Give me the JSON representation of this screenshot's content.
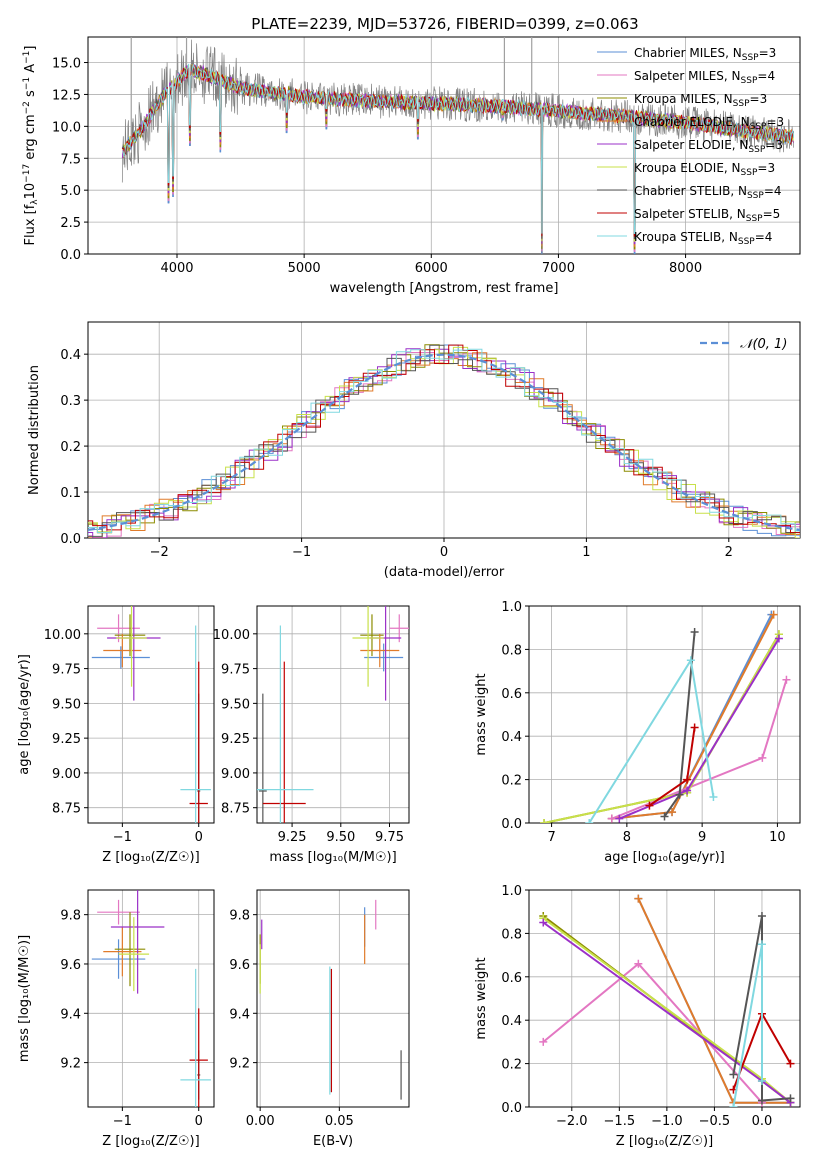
{
  "figure": {
    "title": "PLATE=2239, MJD=53726, FIBERID=0399, z=0.063"
  },
  "series": [
    {
      "name": "Chabrier MILES, N_SSP=3",
      "label_main": "Chabrier MILES, N",
      "label_sub": "SSP",
      "label_tail": "=3",
      "color": "#5b8fd6"
    },
    {
      "name": "Salpeter MILES, N_SSP=4",
      "label_main": "Salpeter MILES, N",
      "label_sub": "SSP",
      "label_tail": "=4",
      "color": "#e377c2"
    },
    {
      "name": "Kroupa MILES, N_SSP=3",
      "label_main": "Kroupa MILES, N",
      "label_sub": "SSP",
      "label_tail": "=3",
      "color": "#8c8c00"
    },
    {
      "name": "Chabrier ELODIE, N_SSP=3",
      "label_main": "Chabrier ELODIE, N",
      "label_sub": "SSP",
      "label_tail": "=3",
      "color": "#e07b2b"
    },
    {
      "name": "Salpeter ELODIE, N_SSP=3",
      "label_main": "Salpeter ELODIE, N",
      "label_sub": "SSP",
      "label_tail": "=3",
      "color": "#9b30c8"
    },
    {
      "name": "Kroupa ELODIE, N_SSP=3",
      "label_main": "Kroupa ELODIE, N",
      "label_sub": "SSP",
      "label_tail": "=3",
      "color": "#c8e04a"
    },
    {
      "name": "Chabrier STELIB, N_SSP=4",
      "label_main": "Chabrier STELIB, N",
      "label_sub": "SSP",
      "label_tail": "=4",
      "color": "#555555"
    },
    {
      "name": "Salpeter STELIB, N_SSP=5",
      "label_main": "Salpeter STELIB, N",
      "label_sub": "SSP",
      "label_tail": "=5",
      "color": "#c00000"
    },
    {
      "name": "Kroupa STELIB, N_SSP=4",
      "label_main": "Kroupa STELIB, N",
      "label_sub": "SSP",
      "label_tail": "=4",
      "color": "#80d8e0"
    }
  ],
  "chart_data": [
    {
      "id": "spectrum",
      "type": "line",
      "title": "PLATE=2239, MJD=53726, FIBERID=0399, z=0.063",
      "xlabel": "wavelength [Angstrom, rest frame]",
      "ylabel_parts": [
        "Flux [f",
        "λ",
        "10",
        "−17",
        " erg cm",
        "−2",
        " s",
        "−1",
        " A",
        "−1",
        "]"
      ],
      "xlim": [
        3300,
        8900
      ],
      "ylim": [
        0,
        17
      ],
      "xticks": [
        4000,
        5000,
        6000,
        7000,
        8000
      ],
      "yticks": [
        0.0,
        2.5,
        5.0,
        7.5,
        10.0,
        12.5,
        15.0
      ],
      "ytick_labels": [
        "0.0",
        "2.5",
        "5.0",
        "7.5",
        "10.0",
        "12.5",
        "15.0"
      ],
      "continuum": {
        "x": [
          3570,
          3700,
          3800,
          3900,
          4000,
          4100,
          4300,
          4500,
          4800,
          5000,
          5500,
          6000,
          6500,
          7000,
          7500,
          8000,
          8500,
          8800
        ],
        "y": [
          8.0,
          9.5,
          11.0,
          12.5,
          13.5,
          14.5,
          13.8,
          13.0,
          12.6,
          12.3,
          12.0,
          11.8,
          11.6,
          11.2,
          10.8,
          10.3,
          9.6,
          9.2
        ]
      },
      "absorption_dips": [
        [
          3934,
          4.0
        ],
        [
          3968,
          4.5
        ],
        [
          4102,
          8.5
        ],
        [
          4340,
          8.0
        ],
        [
          4861,
          9.5
        ],
        [
          5175,
          9.8
        ],
        [
          5893,
          9.0
        ],
        [
          6563,
          10.5
        ],
        [
          6870,
          0.0
        ],
        [
          7600,
          0.0
        ]
      ],
      "observed_noise_amplitude": 1.5,
      "grey_spike_x": [
        3640,
        4075,
        6575,
        6790
      ],
      "grey_spike_top": 17
    },
    {
      "id": "residuals",
      "type": "step",
      "xlabel": "(data-model)/error",
      "ylabel": "Normed distribution",
      "xlim": [
        -2.5,
        2.5
      ],
      "ylim": [
        0,
        0.47
      ],
      "xticks": [
        -2,
        -1,
        0,
        1,
        2
      ],
      "xtick_labels": [
        "−2",
        "−1",
        "0",
        "1",
        "2"
      ],
      "yticks": [
        0.0,
        0.1,
        0.2,
        0.3,
        0.4
      ],
      "ytick_labels": [
        "0.0",
        "0.1",
        "0.2",
        "0.3",
        "0.4"
      ],
      "normal_curve_label": "𝒩(0, 1)",
      "normal_curve_color": "#5b8fd6",
      "bin_width": 0.1
    },
    {
      "id": "age_vs_Z",
      "type": "errorbar",
      "xlabel": "Z [log₁₀(Z/Z☉)]",
      "ylabel": "age  [log₁₀(age/yr)]",
      "xlim": [
        -1.45,
        0.2
      ],
      "ylim": [
        8.64,
        10.2
      ],
      "xticks": [
        -1,
        0
      ],
      "xtick_labels": [
        "−1",
        "0"
      ],
      "yticks": [
        8.75,
        9.0,
        9.25,
        9.5,
        9.75,
        10.0
      ],
      "ytick_labels": [
        "8.75",
        "9.00",
        "9.25",
        "9.50",
        "9.75",
        "10.00"
      ],
      "points": [
        {
          "s": 0,
          "x": -1.02,
          "y": 9.83,
          "xerr": 0.38,
          "yerr": 0.08
        },
        {
          "s": 1,
          "x": -1.05,
          "y": 10.04,
          "xerr": 0.28,
          "yerr": 0.1
        },
        {
          "s": 2,
          "x": -0.9,
          "y": 9.99,
          "xerr": 0.2,
          "yerr": 0.15
        },
        {
          "s": 3,
          "x": -1.0,
          "y": 9.88,
          "xerr": 0.25,
          "yerr": 0.12
        },
        {
          "s": 4,
          "x": -0.85,
          "y": 9.97,
          "xerr": 0.35,
          "yerr": 0.45
        },
        {
          "s": 5,
          "x": -0.88,
          "y": 9.97,
          "xerr": 0.2,
          "yerr": 0.35
        },
        {
          "s": 6,
          "x": 0.0,
          "y": 8.87,
          "xerr": 0.02,
          "yerr": 0.7
        },
        {
          "s": 7,
          "x": 0.0,
          "y": 8.78,
          "xerr": 0.12,
          "yerr": 1.02
        },
        {
          "s": 8,
          "x": -0.04,
          "y": 8.88,
          "xerr": 0.2,
          "yerr": 1.18
        }
      ]
    },
    {
      "id": "age_vs_mass",
      "type": "errorbar",
      "xlabel": "mass [log₁₀(M/M☉)]",
      "ylabel": "",
      "xlim": [
        9.07,
        9.85
      ],
      "ylim": [
        8.64,
        10.2
      ],
      "xticks": [
        9.25,
        9.5,
        9.75
      ],
      "xtick_labels": [
        "9.25",
        "9.50",
        "9.75"
      ],
      "yticks": [
        8.75,
        9.0,
        9.25,
        9.5,
        9.75,
        10.0
      ],
      "ytick_labels": [
        "8.75",
        "9.00",
        "9.25",
        "9.50",
        "9.75",
        "10.00"
      ],
      "points": [
        {
          "s": 0,
          "x": 9.72,
          "y": 9.83,
          "xerr": 0.1,
          "yerr": 0.1
        },
        {
          "s": 1,
          "x": 9.8,
          "y": 10.04,
          "xerr": 0.05,
          "yerr": 0.1
        },
        {
          "s": 2,
          "x": 9.66,
          "y": 9.99,
          "xerr": 0.06,
          "yerr": 0.15
        },
        {
          "s": 3,
          "x": 9.7,
          "y": 9.88,
          "xerr": 0.1,
          "yerr": 0.12
        },
        {
          "s": 4,
          "x": 9.73,
          "y": 9.97,
          "xerr": 0.08,
          "yerr": 0.45
        },
        {
          "s": 5,
          "x": 9.64,
          "y": 9.97,
          "xerr": 0.08,
          "yerr": 0.35
        },
        {
          "s": 6,
          "x": 9.1,
          "y": 8.87,
          "xerr": 0.02,
          "yerr": 0.7
        },
        {
          "s": 7,
          "x": 9.21,
          "y": 8.78,
          "xerr": 0.11,
          "yerr": 1.02
        },
        {
          "s": 8,
          "x": 9.19,
          "y": 8.88,
          "xerr": 0.17,
          "yerr": 1.18
        }
      ]
    },
    {
      "id": "weight_vs_age",
      "type": "line",
      "xlabel": "age  [log₁₀(age/yr)]",
      "ylabel": "mass weight",
      "xlim": [
        6.7,
        10.3
      ],
      "ylim": [
        0,
        1
      ],
      "xticks": [
        7,
        8,
        9,
        10
      ],
      "xtick_labels": [
        "7",
        "8",
        "9",
        "10"
      ],
      "yticks": [
        0.0,
        0.2,
        0.4,
        0.6,
        0.8,
        1.0
      ],
      "ytick_labels": [
        "0.0",
        "0.2",
        "0.4",
        "0.6",
        "0.8",
        "1.0"
      ],
      "lines": [
        {
          "s": 0,
          "x": [
            7.8,
            8.6,
            9.92
          ],
          "y": [
            0.02,
            0.05,
            0.96
          ]
        },
        {
          "s": 3,
          "x": [
            7.8,
            8.6,
            9.95
          ],
          "y": [
            0.02,
            0.05,
            0.96
          ]
        },
        {
          "s": 1,
          "x": [
            7.8,
            9.8,
            10.12
          ],
          "y": [
            0.02,
            0.3,
            0.66
          ]
        },
        {
          "s": 2,
          "x": [
            6.9,
            8.8,
            10.02
          ],
          "y": [
            0.0,
            0.14,
            0.87
          ]
        },
        {
          "s": 5,
          "x": [
            6.9,
            8.8,
            10.02
          ],
          "y": [
            0.0,
            0.14,
            0.87
          ]
        },
        {
          "s": 4,
          "x": [
            7.9,
            8.8,
            10.02
          ],
          "y": [
            0.02,
            0.15,
            0.85
          ]
        },
        {
          "s": 6,
          "x": [
            8.5,
            8.7,
            8.9
          ],
          "y": [
            0.03,
            0.13,
            0.88
          ]
        },
        {
          "s": 7,
          "x": [
            8.3,
            8.8,
            8.9
          ],
          "y": [
            0.08,
            0.2,
            0.44
          ]
        },
        {
          "s": 8,
          "x": [
            7.5,
            8.85,
            9.15
          ],
          "y": [
            0.0,
            0.75,
            0.12
          ]
        }
      ]
    },
    {
      "id": "mass_vs_Z",
      "type": "errorbar",
      "xlabel": "Z [log₁₀(Z/Z☉)]",
      "ylabel": "mass [log₁₀(M/M☉)]",
      "xlim": [
        -1.45,
        0.2
      ],
      "ylim": [
        9.02,
        9.9
      ],
      "xticks": [
        -1,
        0
      ],
      "xtick_labels": [
        "−1",
        "0"
      ],
      "yticks": [
        9.2,
        9.4,
        9.6,
        9.8
      ],
      "ytick_labels": [
        "9.2",
        "9.4",
        "9.6",
        "9.8"
      ],
      "points": [
        {
          "s": 0,
          "x": -1.05,
          "y": 9.62,
          "xerr": 0.35,
          "yerr": 0.08
        },
        {
          "s": 1,
          "x": -1.05,
          "y": 9.81,
          "xerr": 0.28,
          "yerr": 0.05
        },
        {
          "s": 2,
          "x": -0.9,
          "y": 9.66,
          "xerr": 0.2,
          "yerr": 0.15
        },
        {
          "s": 3,
          "x": -1.0,
          "y": 9.65,
          "xerr": 0.25,
          "yerr": 0.1
        },
        {
          "s": 4,
          "x": -0.8,
          "y": 9.75,
          "xerr": 0.35,
          "yerr": 0.27
        },
        {
          "s": 5,
          "x": -0.85,
          "y": 9.64,
          "xerr": 0.2,
          "yerr": 0.15
        },
        {
          "s": 6,
          "x": 0.0,
          "y": 9.15,
          "xerr": 0.02,
          "yerr": 0.1
        },
        {
          "s": 7,
          "x": 0.0,
          "y": 9.21,
          "xerr": 0.12,
          "yerr": 0.21
        },
        {
          "s": 8,
          "x": -0.04,
          "y": 9.13,
          "xerr": 0.2,
          "yerr": 0.45
        }
      ]
    },
    {
      "id": "mass_vs_EBV",
      "type": "errorbar",
      "xlabel": "E(B-V)",
      "ylabel": "",
      "xlim": [
        -0.002,
        0.094
      ],
      "ylim": [
        9.02,
        9.9
      ],
      "xticks": [
        0.0,
        0.05
      ],
      "xtick_labels": [
        "0.00",
        "0.05"
      ],
      "yticks": [
        9.2,
        9.4,
        9.6,
        9.8
      ],
      "ytick_labels": [
        "9.2",
        "9.4",
        "9.6",
        "9.8"
      ],
      "points": [
        {
          "s": 0,
          "x": 0.066,
          "y": 9.75,
          "xerr": 0.0,
          "yerr": 0.08
        },
        {
          "s": 1,
          "x": 0.073,
          "y": 9.8,
          "xerr": 0.0,
          "yerr": 0.06
        },
        {
          "s": 2,
          "x": 0.0,
          "y": 9.62,
          "xerr": 0.0,
          "yerr": 0.1
        },
        {
          "s": 3,
          "x": 0.066,
          "y": 9.7,
          "xerr": 0.0,
          "yerr": 0.1
        },
        {
          "s": 4,
          "x": 0.001,
          "y": 9.72,
          "xerr": 0.0,
          "yerr": 0.06
        },
        {
          "s": 5,
          "x": 0.0,
          "y": 9.58,
          "xerr": 0.0,
          "yerr": 0.1
        },
        {
          "s": 6,
          "x": 0.089,
          "y": 9.15,
          "xerr": 0.0,
          "yerr": 0.1
        },
        {
          "s": 7,
          "x": 0.045,
          "y": 9.33,
          "xerr": 0.0,
          "yerr": 0.25
        },
        {
          "s": 8,
          "x": 0.044,
          "y": 9.33,
          "xerr": 0.0,
          "yerr": 0.26
        }
      ]
    },
    {
      "id": "weight_vs_Z",
      "type": "line",
      "xlabel": "Z [log₁₀(Z/Z☉)]",
      "ylabel": "mass weight",
      "xlim": [
        -2.45,
        0.4
      ],
      "ylim": [
        0,
        1
      ],
      "xticks": [
        -2.0,
        -1.5,
        -1.0,
        -0.5,
        0.0
      ],
      "xtick_labels": [
        "−2.0",
        "−1.5",
        "−1.0",
        "−0.5",
        "0.0"
      ],
      "yticks": [
        0.0,
        0.2,
        0.4,
        0.6,
        0.8,
        1.0
      ],
      "ytick_labels": [
        "0.0",
        "0.2",
        "0.4",
        "0.6",
        "0.8",
        "1.0"
      ],
      "lines": [
        {
          "s": 0,
          "x": [
            -1.3,
            -0.3,
            0.3
          ],
          "y": [
            0.96,
            0.02,
            0.02
          ]
        },
        {
          "s": 3,
          "x": [
            -1.3,
            -0.3,
            0.3
          ],
          "y": [
            0.96,
            0.02,
            0.02
          ]
        },
        {
          "s": 1,
          "x": [
            -2.3,
            -1.3,
            0.0
          ],
          "y": [
            0.3,
            0.66,
            0.02
          ]
        },
        {
          "s": 2,
          "x": [
            -2.3,
            0.0,
            0.3
          ],
          "y": [
            0.88,
            0.12,
            0.02
          ]
        },
        {
          "s": 5,
          "x": [
            -2.3,
            0.0,
            0.3
          ],
          "y": [
            0.87,
            0.13,
            0.02
          ]
        },
        {
          "s": 4,
          "x": [
            -2.3,
            0.0,
            0.3
          ],
          "y": [
            0.85,
            0.12,
            0.02
          ]
        },
        {
          "s": 6,
          "x": [
            -0.3,
            0.0,
            0.0,
            0.3
          ],
          "y": [
            0.15,
            0.88,
            0.03,
            0.04
          ]
        },
        {
          "s": 7,
          "x": [
            -0.3,
            0.0,
            0.3
          ],
          "y": [
            0.08,
            0.43,
            0.2
          ]
        },
        {
          "s": 8,
          "x": [
            -0.3,
            0.0,
            0.0
          ],
          "y": [
            0.0,
            0.75,
            0.12
          ]
        }
      ]
    }
  ]
}
